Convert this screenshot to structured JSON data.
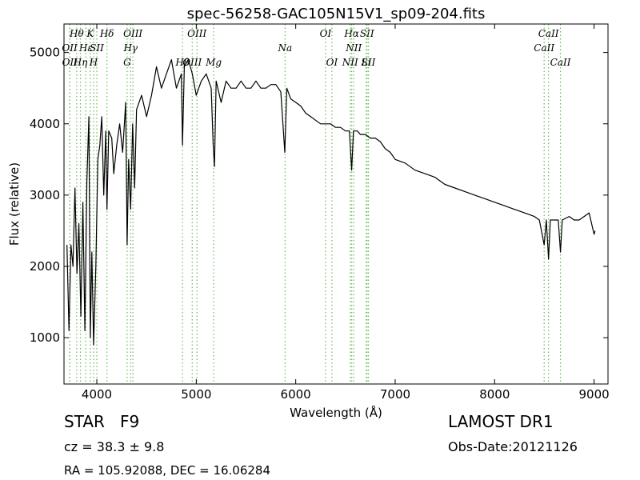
{
  "chart_data": {
    "type": "line",
    "title": "spec-56258-GAC105N15V1_sp09-204.fits",
    "x_label": "Wavelength (Å)",
    "y_label": "Flux (relative)",
    "xlim": [
      3670,
      9140
    ],
    "ylim": [
      350,
      5400
    ],
    "xticks": [
      4000,
      5000,
      6000,
      7000,
      8000,
      9000
    ],
    "yticks": [
      1000,
      2000,
      3000,
      4000,
      5000
    ],
    "line_color": "#000000",
    "marker_color": "#66bb55",
    "x": [
      3700,
      3720,
      3740,
      3760,
      3780,
      3800,
      3820,
      3840,
      3860,
      3880,
      3900,
      3920,
      3935,
      3950,
      3968,
      3990,
      4010,
      4030,
      4050,
      4070,
      4090,
      4102,
      4120,
      4150,
      4170,
      4200,
      4230,
      4260,
      4290,
      4305,
      4320,
      4340,
      4360,
      4380,
      4400,
      4450,
      4500,
      4550,
      4600,
      4650,
      4700,
      4750,
      4800,
      4850,
      4861,
      4880,
      4920,
      4960,
      5000,
      5050,
      5100,
      5150,
      5170,
      5183,
      5200,
      5250,
      5300,
      5350,
      5400,
      5450,
      5500,
      5550,
      5600,
      5650,
      5700,
      5750,
      5800,
      5850,
      5890,
      5910,
      5950,
      6000,
      6050,
      6100,
      6150,
      6200,
      6250,
      6300,
      6350,
      6400,
      6450,
      6500,
      6540,
      6563,
      6580,
      6620,
      6650,
      6700,
      6750,
      6800,
      6850,
      6900,
      6950,
      7000,
      7100,
      7200,
      7300,
      7400,
      7500,
      7600,
      7700,
      7800,
      7900,
      8000,
      8100,
      8200,
      8300,
      8400,
      8450,
      8498,
      8520,
      8542,
      8560,
      8600,
      8640,
      8662,
      8680,
      8750,
      8800,
      8850,
      8900,
      8950,
      9000,
      9010
    ],
    "series": [
      {
        "values": [
          2300,
          1100,
          2300,
          2000,
          3100,
          1900,
          2600,
          1300,
          2900,
          1100,
          3200,
          4100,
          1000,
          2200,
          900,
          2000,
          3500,
          3700,
          4100,
          3000,
          3900,
          2800,
          3900,
          3800,
          3300,
          3700,
          4000,
          3600,
          4300,
          2300,
          3500,
          2800,
          4000,
          3100,
          4200,
          4400,
          4100,
          4400,
          4800,
          4500,
          4700,
          4900,
          4500,
          4700,
          3700,
          4800,
          4900,
          4700,
          4400,
          4600,
          4700,
          4500,
          3700,
          3400,
          4600,
          4300,
          4600,
          4500,
          4500,
          4600,
          4500,
          4500,
          4600,
          4500,
          4500,
          4550,
          4550,
          4450,
          3600,
          4500,
          4350,
          4300,
          4250,
          4150,
          4100,
          4050,
          4000,
          4000,
          4000,
          3950,
          3950,
          3900,
          3900,
          3350,
          3900,
          3900,
          3850,
          3850,
          3800,
          3800,
          3750,
          3650,
          3600,
          3500,
          3450,
          3350,
          3300,
          3250,
          3150,
          3100,
          3050,
          3000,
          2950,
          2900,
          2850,
          2800,
          2750,
          2700,
          2650,
          2300,
          2650,
          2100,
          2650,
          2650,
          2650,
          2200,
          2650,
          2700,
          2650,
          2650,
          2700,
          2750,
          2450,
          2500
        ]
      }
    ],
    "annotations": [
      {
        "text": "Hθ",
        "x": 3798,
        "row": 1
      },
      {
        "text": "K",
        "x": 3934,
        "row": 1
      },
      {
        "text": "Hδ",
        "x": 4102,
        "row": 1
      },
      {
        "text": "OIII",
        "x": 4363,
        "row": 1
      },
      {
        "text": "OIII",
        "x": 5007,
        "row": 1
      },
      {
        "text": "OI",
        "x": 6300,
        "row": 1
      },
      {
        "text": "Hα",
        "x": 6563,
        "row": 1
      },
      {
        "text": "SII",
        "x": 6717,
        "row": 1
      },
      {
        "text": "CaII",
        "x": 8542,
        "row": 1
      },
      {
        "text": "OII",
        "x": 3727,
        "row": 2
      },
      {
        "text": "Hε",
        "x": 3890,
        "row": 2
      },
      {
        "text": "SII",
        "x": 4000,
        "row": 2
      },
      {
        "text": "Hγ",
        "x": 4340,
        "row": 2
      },
      {
        "text": "Na",
        "x": 5893,
        "row": 2
      },
      {
        "text": "NII",
        "x": 6584,
        "row": 2
      },
      {
        "text": "CaII",
        "x": 8498,
        "row": 2
      },
      {
        "text": "OII",
        "x": 3729,
        "row": 3
      },
      {
        "text": "Hη",
        "x": 3835,
        "row": 3
      },
      {
        "text": "H",
        "x": 3968,
        "row": 3
      },
      {
        "text": "G",
        "x": 4305,
        "row": 3
      },
      {
        "text": "Hβ",
        "x": 4861,
        "row": 3
      },
      {
        "text": "OIII",
        "x": 4959,
        "row": 3
      },
      {
        "text": "Mg",
        "x": 5175,
        "row": 3
      },
      {
        "text": "OI",
        "x": 6364,
        "row": 3
      },
      {
        "text": "NII",
        "x": 6548,
        "row": 3
      },
      {
        "text": "Li",
        "x": 6708,
        "row": 3
      },
      {
        "text": "SII",
        "x": 6731,
        "row": 3
      },
      {
        "text": "CaII",
        "x": 8662,
        "row": 3
      }
    ]
  },
  "info": {
    "class": "STAR   F9",
    "cz": "cz = 38.3 ± 9.8",
    "coords": "RA = 105.92088, DEC = 16.06284",
    "survey": "LAMOST DR1",
    "obs_date": "Obs-Date:20121126"
  }
}
